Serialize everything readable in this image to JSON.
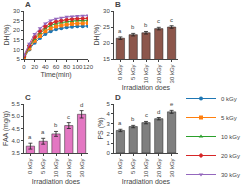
{
  "chart_data": [
    {
      "type": "line",
      "title": "A",
      "xlabel": "Time(min)",
      "ylabel": "DH(%)",
      "x": [
        0,
        10,
        20,
        30,
        40,
        50,
        60,
        70,
        80,
        90,
        100,
        110,
        120
      ],
      "series": [
        {
          "name": "0 kGy",
          "marker": "circle",
          "values": [
            5.5,
            10.0,
            13.5,
            16.0,
            18.0,
            19.5,
            20.5,
            21.0,
            21.5,
            21.8,
            22.0,
            22.1,
            22.2
          ]
        },
        {
          "name": "5 kGy",
          "marker": "square",
          "values": [
            5.5,
            10.5,
            14.5,
            17.0,
            19.5,
            21.0,
            22.0,
            22.5,
            23.0,
            23.3,
            23.5,
            23.6,
            23.8
          ]
        },
        {
          "name": "10 kGy",
          "marker": "triangle-up",
          "values": [
            6.0,
            11.5,
            15.5,
            18.5,
            21.0,
            22.5,
            23.5,
            24.0,
            24.5,
            24.8,
            25.0,
            25.1,
            25.2
          ]
        },
        {
          "name": "20 kGy",
          "marker": "diamond",
          "values": [
            6.5,
            12.0,
            16.5,
            19.5,
            22.0,
            23.5,
            24.5,
            25.0,
            25.5,
            25.8,
            26.0,
            26.1,
            26.2
          ]
        },
        {
          "name": "30 kGy",
          "marker": "triangle-down",
          "values": [
            7.0,
            13.0,
            18.0,
            21.0,
            23.5,
            25.0,
            26.0,
            26.5,
            27.0,
            27.2,
            27.4,
            27.5,
            27.6
          ]
        }
      ],
      "xlim": [
        0,
        120
      ],
      "ylim": [
        5,
        30
      ],
      "xticks": [
        0,
        20,
        40,
        60,
        80,
        100,
        120
      ],
      "yticks": [
        5,
        10,
        15,
        20,
        25,
        30
      ],
      "legend": "lower right",
      "grid": false
    },
    {
      "type": "bar",
      "title": "B",
      "xlabel": "Irradiation does",
      "ylabel": "DH(%)",
      "categories": [
        "0 kGy",
        "5 kGy",
        "10 kGy",
        "20 kGy",
        "30 kGy"
      ],
      "values": [
        21.5,
        22.6,
        23.2,
        24.5,
        25.0
      ],
      "errors": [
        0.4,
        0.4,
        0.4,
        0.4,
        0.4
      ],
      "annotations": [
        "a",
        "b",
        "b",
        "c",
        "c"
      ],
      "ylim": [
        15,
        30
      ],
      "yticks": [
        15,
        20,
        25,
        30
      ],
      "grid": false
    },
    {
      "type": "bar",
      "title": "C",
      "xlabel": "Irradiation does",
      "ylabel": "FAA (mg/g)",
      "categories": [
        "0 kGy",
        "5 kGy",
        "10 kGy",
        "20 kGy",
        "30 kGy"
      ],
      "values": [
        3.78,
        3.98,
        4.28,
        4.62,
        5.08
      ],
      "errors": [
        0.12,
        0.12,
        0.1,
        0.12,
        0.15
      ],
      "annotations": [
        "a",
        "a",
        "b",
        "c",
        "d"
      ],
      "ylim": [
        3.5,
        5.5
      ],
      "yticks": [
        3.5,
        {
          "value": 4,
          "label": "4.0"
        },
        4.5,
        {
          "value": 5,
          "label": "5.0"
        },
        5.5
      ],
      "grid": false
    },
    {
      "type": "bar",
      "title": "D",
      "xlabel": "Irradiation does",
      "ylabel": "PS (%)",
      "categories": [
        "0 kGy",
        "5 kGy",
        "10 kGy",
        "20 kGy",
        "30 kGy"
      ],
      "values": [
        2.3,
        2.7,
        3.1,
        3.5,
        4.2
      ],
      "errors": [
        0.12,
        0.12,
        0.12,
        0.12,
        0.15
      ],
      "annotations": [
        "a",
        "b",
        "c",
        "d",
        "e"
      ],
      "ylim": [
        0,
        5
      ],
      "yticks": [
        0,
        1,
        2,
        3,
        4,
        5
      ],
      "grid": false
    }
  ]
}
